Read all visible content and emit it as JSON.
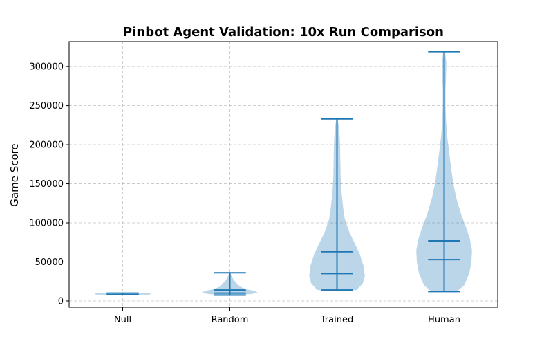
{
  "chart_data": {
    "type": "violin",
    "title": "Pinbot Agent Validation: 10x Run Comparison",
    "xlabel": "",
    "ylabel": "Game Score",
    "ylim": [
      -8000,
      332000
    ],
    "yticks": [
      0,
      50000,
      100000,
      150000,
      200000,
      250000,
      300000
    ],
    "ytick_labels": [
      "0",
      "50000",
      "100000",
      "150000",
      "200000",
      "250000",
      "300000"
    ],
    "grid": true,
    "categories": [
      "Null",
      "Random",
      "Trained",
      "Human"
    ],
    "series": [
      {
        "category": "Null",
        "min": 8000,
        "max": 10000,
        "quantiles": [],
        "density": [
          [
            8000,
            0.9
          ],
          [
            8500,
            1.0
          ],
          [
            9000,
            1.0
          ],
          [
            9500,
            1.0
          ],
          [
            10000,
            0.9
          ]
        ]
      },
      {
        "category": "Random",
        "min": 7500,
        "max": 36000,
        "quantiles": [
          10000,
          14000
        ],
        "density": [
          [
            7500,
            0.3
          ],
          [
            9000,
            0.82
          ],
          [
            11000,
            1.0
          ],
          [
            13000,
            0.85
          ],
          [
            15000,
            0.6
          ],
          [
            18000,
            0.38
          ],
          [
            22000,
            0.26
          ],
          [
            27000,
            0.14
          ],
          [
            32000,
            0.06
          ],
          [
            36000,
            0.02
          ]
        ]
      },
      {
        "category": "Trained",
        "min": 14000,
        "max": 233000,
        "quantiles": [
          35000,
          63000
        ],
        "density": [
          [
            14000,
            0.7
          ],
          [
            22000,
            0.92
          ],
          [
            32000,
            1.0
          ],
          [
            45000,
            0.95
          ],
          [
            60000,
            0.82
          ],
          [
            75000,
            0.62
          ],
          [
            90000,
            0.42
          ],
          [
            105000,
            0.28
          ],
          [
            120000,
            0.22
          ],
          [
            140000,
            0.16
          ],
          [
            160000,
            0.13
          ],
          [
            180000,
            0.12
          ],
          [
            200000,
            0.11
          ],
          [
            215000,
            0.09
          ],
          [
            225000,
            0.06
          ],
          [
            233000,
            0.02
          ]
        ]
      },
      {
        "category": "Human",
        "min": 12000,
        "max": 319000,
        "quantiles": [
          53000,
          77000
        ],
        "density": [
          [
            12000,
            0.45
          ],
          [
            20000,
            0.72
          ],
          [
            35000,
            0.9
          ],
          [
            50000,
            0.98
          ],
          [
            65000,
            1.0
          ],
          [
            80000,
            0.92
          ],
          [
            95000,
            0.78
          ],
          [
            110000,
            0.62
          ],
          [
            130000,
            0.45
          ],
          [
            150000,
            0.33
          ],
          [
            170000,
            0.25
          ],
          [
            190000,
            0.18
          ],
          [
            210000,
            0.11
          ],
          [
            230000,
            0.07
          ],
          [
            250000,
            0.05
          ],
          [
            270000,
            0.05
          ],
          [
            290000,
            0.07
          ],
          [
            305000,
            0.08
          ],
          [
            319000,
            0.03
          ]
        ]
      }
    ]
  }
}
